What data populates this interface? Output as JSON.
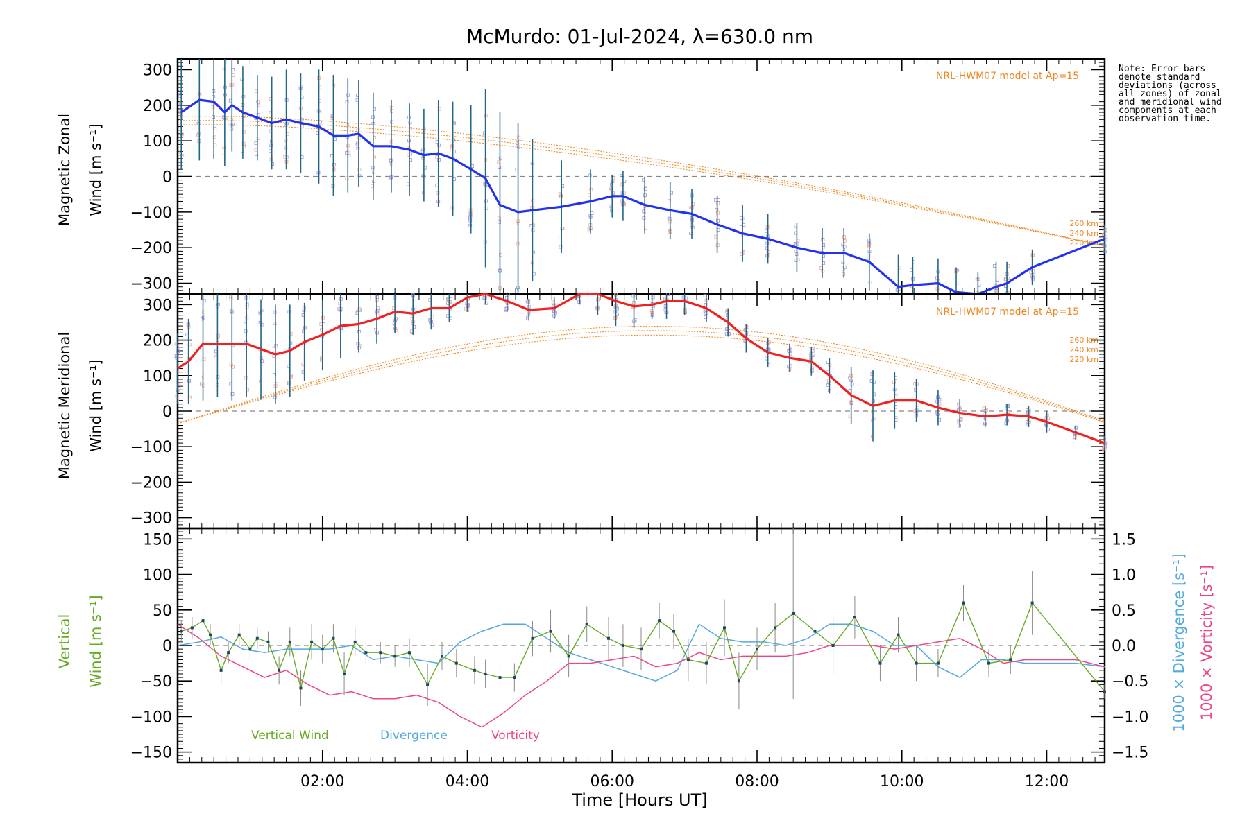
{
  "title": "McMurdo: 01-Jul-2024, λ=630.0 nm",
  "note": "Note: Error bars denote standard deviations (across all zones) of zonal and meridional wind components at each observation time.",
  "colors": {
    "zonal": "#2233ee",
    "meridional": "#ee2222",
    "model": "#ee8822",
    "vertical": "#66aa22",
    "divergence": "#55aadd",
    "vorticity": "#ee4488",
    "errorbar_zm": "#226688",
    "errorbar_v": "#888888",
    "scatter_a": "#f4a890",
    "scatter_b": "#9999dd",
    "zero_line": "#888888"
  },
  "chart_data": [
    {
      "type": "line",
      "panel": "zonal",
      "ylabel_line1": "Magnetic Zonal",
      "ylabel_line2": "Wind [m s⁻¹]",
      "ylim": [
        -330,
        330
      ],
      "yticks": [
        300,
        200,
        100,
        0,
        -100,
        -200,
        -300
      ],
      "ytick_labels": [
        "300",
        "200",
        "100",
        "0",
        "−100",
        "−200",
        "−300"
      ],
      "xlim": [
        0.0,
        12.8
      ],
      "model_label": "NRL-HWM07 model at Ap=15",
      "model_heights": [
        "260 km",
        "240 km",
        "220 km"
      ],
      "series": [
        {
          "name": "Zonal",
          "x": [
            0.05,
            0.3,
            0.5,
            0.65,
            0.75,
            0.9,
            1.1,
            1.3,
            1.5,
            1.7,
            1.95,
            2.15,
            2.35,
            2.5,
            2.7,
            2.95,
            3.2,
            3.4,
            3.6,
            3.8,
            4.05,
            4.25,
            4.45,
            4.7,
            4.9,
            5.3,
            5.7,
            6.0,
            6.15,
            6.45,
            6.8,
            7.1,
            7.45,
            7.8,
            8.15,
            8.55,
            8.9,
            9.2,
            9.55,
            9.95,
            10.15,
            10.5,
            10.75,
            11.05,
            11.3,
            11.45,
            11.8,
            12.8
          ],
          "values": [
            180,
            215,
            210,
            180,
            200,
            180,
            165,
            150,
            160,
            150,
            140,
            115,
            115,
            120,
            85,
            85,
            75,
            60,
            65,
            50,
            20,
            -5,
            -80,
            -100,
            -95,
            -85,
            -70,
            -55,
            -55,
            -80,
            -95,
            -105,
            -135,
            -160,
            -175,
            -200,
            -215,
            -215,
            -240,
            -310,
            -305,
            -300,
            -325,
            -330,
            -310,
            -300,
            -255,
            -175
          ],
          "errors": [
            160,
            170,
            160,
            150,
            130,
            130,
            120,
            130,
            140,
            140,
            160,
            170,
            160,
            150,
            150,
            130,
            130,
            130,
            150,
            160,
            180,
            250,
            260,
            250,
            200,
            130,
            90,
            60,
            70,
            80,
            80,
            70,
            80,
            80,
            70,
            70,
            70,
            70,
            80,
            90,
            80,
            70,
            70,
            60,
            70,
            60,
            50,
            40
          ]
        }
      ]
    },
    {
      "type": "line",
      "panel": "meridional",
      "ylabel_line1": "Magnetic Meridional",
      "ylabel_line2": "Wind [m s⁻¹]",
      "ylim": [
        -330,
        330
      ],
      "yticks": [
        300,
        200,
        100,
        0,
        -100,
        -200,
        -300
      ],
      "ytick_labels": [
        "300",
        "200",
        "100",
        "0",
        "−100",
        "−200",
        "−300"
      ],
      "xlim": [
        0.0,
        12.8
      ],
      "model_label": "NRL-HWM07 model at Ap=15",
      "model_heights": [
        "260 km",
        "240 km",
        "220 km"
      ],
      "series": [
        {
          "name": "Meridional",
          "x": [
            0.0,
            0.15,
            0.35,
            0.55,
            0.75,
            0.95,
            1.15,
            1.35,
            1.55,
            1.75,
            2.0,
            2.25,
            2.5,
            2.75,
            3.0,
            3.25,
            3.5,
            3.75,
            4.0,
            4.25,
            4.55,
            4.85,
            5.2,
            5.55,
            5.8,
            6.05,
            6.3,
            6.55,
            6.75,
            7.0,
            7.3,
            7.6,
            7.85,
            8.15,
            8.45,
            8.75,
            9.0,
            9.3,
            9.6,
            9.9,
            10.2,
            10.5,
            10.8,
            11.15,
            11.45,
            11.75,
            12.0,
            12.4,
            12.8
          ],
          "values": [
            120,
            140,
            190,
            190,
            190,
            190,
            175,
            160,
            170,
            195,
            215,
            240,
            245,
            260,
            280,
            275,
            290,
            290,
            320,
            330,
            310,
            285,
            290,
            330,
            330,
            310,
            295,
            300,
            310,
            310,
            290,
            250,
            205,
            165,
            150,
            140,
            100,
            45,
            15,
            30,
            30,
            10,
            -5,
            -15,
            -10,
            -15,
            -30,
            -60,
            -90
          ],
          "errors": [
            100,
            120,
            160,
            150,
            160,
            150,
            140,
            140,
            130,
            110,
            100,
            90,
            80,
            70,
            60,
            60,
            60,
            40,
            40,
            30,
            30,
            30,
            30,
            30,
            60,
            70,
            60,
            40,
            50,
            40,
            40,
            40,
            40,
            40,
            40,
            40,
            50,
            80,
            100,
            80,
            60,
            50,
            40,
            30,
            30,
            30,
            30,
            20,
            20
          ]
        }
      ]
    },
    {
      "type": "line",
      "panel": "vertical",
      "ylabel_line1": "Vertical",
      "ylabel_line2": "Wind [m s⁻¹]",
      "right_label_1": "1000 × Divergence [s⁻¹]",
      "right_label_2": "1000 × Vorticity [s⁻¹]",
      "ylim": [
        -165,
        165
      ],
      "yticks": [
        150,
        100,
        50,
        0,
        -50,
        -100,
        -150
      ],
      "ytick_labels": [
        "150",
        "100",
        "50",
        "0",
        "−50",
        "−100",
        "−150"
      ],
      "y2lim": [
        -1.65,
        1.65
      ],
      "y2ticks": [
        1.5,
        1.0,
        0.5,
        0.0,
        -0.5,
        -1.0,
        -1.5
      ],
      "y2tick_labels": [
        "1.5",
        "1.0",
        "0.5",
        "0.0",
        "−0.5",
        "−1.0",
        "−1.5"
      ],
      "xlim": [
        0.0,
        12.8
      ],
      "xticks": [
        2,
        4,
        6,
        8,
        10,
        12
      ],
      "xtick_labels": [
        "02:00",
        "04:00",
        "06:00",
        "08:00",
        "10:00",
        "12:00"
      ],
      "xlabel": "Time [Hours UT]",
      "legend": [
        "Vertical Wind",
        "Divergence",
        "Vorticity"
      ],
      "series": [
        {
          "name": "Vertical Wind",
          "x": [
            0.05,
            0.2,
            0.35,
            0.45,
            0.6,
            0.7,
            0.85,
            1.0,
            1.1,
            1.25,
            1.4,
            1.55,
            1.7,
            1.85,
            2.0,
            2.15,
            2.3,
            2.45,
            2.6,
            2.8,
            3.0,
            3.2,
            3.45,
            3.65,
            3.85,
            4.1,
            4.25,
            4.45,
            4.65,
            4.9,
            5.15,
            5.4,
            5.65,
            5.95,
            6.15,
            6.4,
            6.65,
            6.85,
            7.05,
            7.3,
            7.55,
            7.75,
            8.0,
            8.25,
            8.5,
            8.8,
            9.05,
            9.35,
            9.7,
            9.95,
            10.2,
            10.5,
            10.85,
            11.2,
            11.5,
            11.8,
            12.8
          ],
          "values": [
            20,
            25,
            35,
            15,
            -35,
            -10,
            15,
            -5,
            10,
            5,
            -35,
            5,
            -60,
            5,
            -5,
            10,
            -40,
            5,
            -10,
            -10,
            -15,
            -10,
            -55,
            -15,
            -25,
            -35,
            -40,
            -45,
            -45,
            10,
            20,
            -15,
            30,
            10,
            0,
            -5,
            35,
            20,
            -20,
            -25,
            25,
            -50,
            -5,
            25,
            45,
            20,
            0,
            40,
            -25,
            15,
            -25,
            -25,
            60,
            -25,
            -20,
            60,
            -65
          ],
          "errors": [
            15,
            15,
            15,
            15,
            20,
            15,
            15,
            15,
            15,
            15,
            20,
            20,
            25,
            25,
            20,
            20,
            30,
            20,
            15,
            15,
            15,
            20,
            30,
            20,
            20,
            20,
            20,
            20,
            20,
            25,
            30,
            30,
            25,
            30,
            30,
            30,
            25,
            25,
            30,
            30,
            40,
            40,
            30,
            35,
            120,
            40,
            40,
            30,
            25,
            25,
            25,
            20,
            25,
            20,
            20,
            45,
            10
          ]
        },
        {
          "name": "Divergence",
          "x": [
            0.0,
            0.3,
            0.6,
            0.9,
            1.2,
            1.5,
            1.8,
            2.1,
            2.4,
            2.7,
            3.0,
            3.3,
            3.6,
            3.9,
            4.2,
            4.5,
            4.8,
            5.1,
            5.4,
            5.7,
            6.0,
            6.3,
            6.6,
            6.9,
            7.2,
            7.5,
            7.8,
            8.1,
            8.4,
            8.7,
            9.0,
            9.3,
            9.6,
            9.9,
            10.2,
            10.5,
            10.8,
            11.1,
            11.4,
            11.7,
            12.0,
            12.4,
            12.8
          ],
          "values": [
            0.0,
            0.05,
            0.12,
            -0.05,
            -0.1,
            -0.05,
            -0.05,
            -0.05,
            0.0,
            -0.2,
            -0.15,
            -0.2,
            -0.25,
            0.05,
            0.2,
            0.3,
            0.3,
            0.1,
            -0.1,
            -0.2,
            -0.3,
            -0.4,
            -0.5,
            -0.35,
            0.3,
            0.1,
            0.05,
            0.05,
            0.0,
            0.1,
            0.3,
            0.3,
            0.2,
            0.0,
            0.0,
            -0.3,
            -0.45,
            -0.2,
            -0.2,
            -0.25,
            -0.25,
            -0.25,
            -0.3
          ]
        },
        {
          "name": "Vorticity",
          "x": [
            0.0,
            0.3,
            0.6,
            0.9,
            1.2,
            1.5,
            1.8,
            2.1,
            2.4,
            2.7,
            3.0,
            3.3,
            3.6,
            3.9,
            4.2,
            4.5,
            4.8,
            5.1,
            5.4,
            5.7,
            6.0,
            6.3,
            6.6,
            6.9,
            7.2,
            7.5,
            7.8,
            8.1,
            8.4,
            8.7,
            9.0,
            9.3,
            9.6,
            9.9,
            10.2,
            10.5,
            10.8,
            11.1,
            11.4,
            11.7,
            12.0,
            12.4,
            12.8
          ],
          "values": [
            0.3,
            0.1,
            -0.15,
            -0.3,
            -0.45,
            -0.35,
            -0.55,
            -0.7,
            -0.65,
            -0.75,
            -0.75,
            -0.7,
            -0.8,
            -1.0,
            -1.15,
            -0.95,
            -0.7,
            -0.5,
            -0.25,
            -0.25,
            -0.2,
            -0.15,
            -0.3,
            -0.25,
            -0.1,
            -0.2,
            -0.15,
            -0.15,
            -0.15,
            -0.1,
            0.0,
            0.0,
            0.0,
            -0.05,
            0.0,
            0.05,
            0.1,
            -0.05,
            -0.25,
            -0.2,
            -0.2,
            -0.2,
            -0.3
          ]
        }
      ]
    }
  ]
}
